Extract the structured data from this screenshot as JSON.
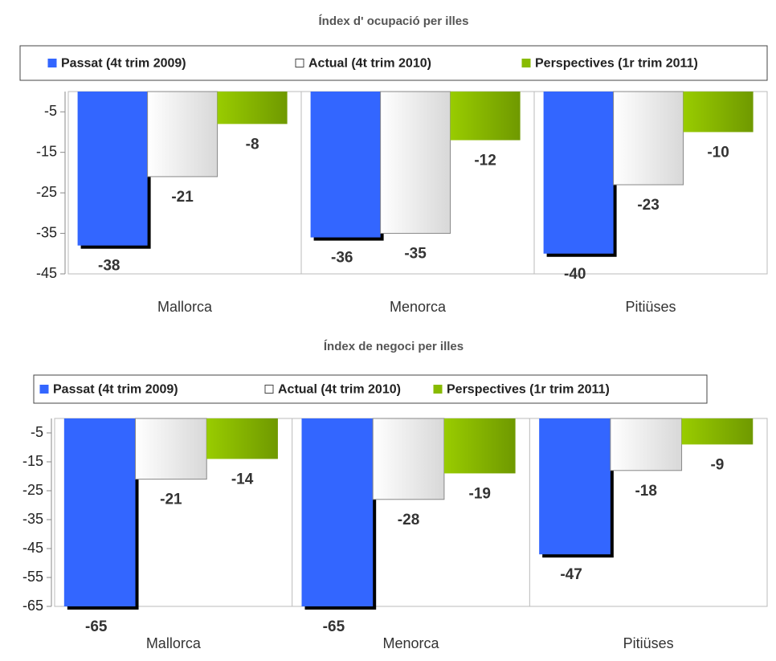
{
  "chart_data": [
    {
      "type": "bar",
      "title": "Índex d' ocupació per illes",
      "categories": [
        "Mallorca",
        "Menorca",
        "Pitiüses"
      ],
      "series": [
        {
          "name": "Passat (4t trim 2009)",
          "color": "#3366ff",
          "values": [
            -38,
            -36,
            -40
          ]
        },
        {
          "name": "Actual (4t trim 2010)",
          "color": "#f2f2f2",
          "values": [
            -21,
            -35,
            -23
          ]
        },
        {
          "name": "Perspectives (1r trim 2011)",
          "color": "#88bb00",
          "values": [
            -8,
            -12,
            -10
          ]
        }
      ],
      "ylim": [
        -45,
        0
      ],
      "yticks": [
        -5,
        -15,
        -25,
        -35,
        -45
      ],
      "legend": "top"
    },
    {
      "type": "bar",
      "title": "Índex de negoci per illes",
      "categories": [
        "Mallorca",
        "Menorca",
        "Pitiüses"
      ],
      "series": [
        {
          "name": "Passat (4t trim 2009)",
          "color": "#3366ff",
          "values": [
            -65,
            -65,
            -47
          ]
        },
        {
          "name": "Actual (4t trim 2010)",
          "color": "#f2f2f2",
          "values": [
            -21,
            -28,
            -18
          ]
        },
        {
          "name": "Perspectives (1r trim 2011)",
          "color": "#88bb00",
          "values": [
            -14,
            -19,
            -9
          ]
        }
      ],
      "ylim": [
        -65,
        0
      ],
      "yticks": [
        -5,
        -15,
        -25,
        -35,
        -45,
        -55,
        -65
      ],
      "legend": "top"
    }
  ]
}
